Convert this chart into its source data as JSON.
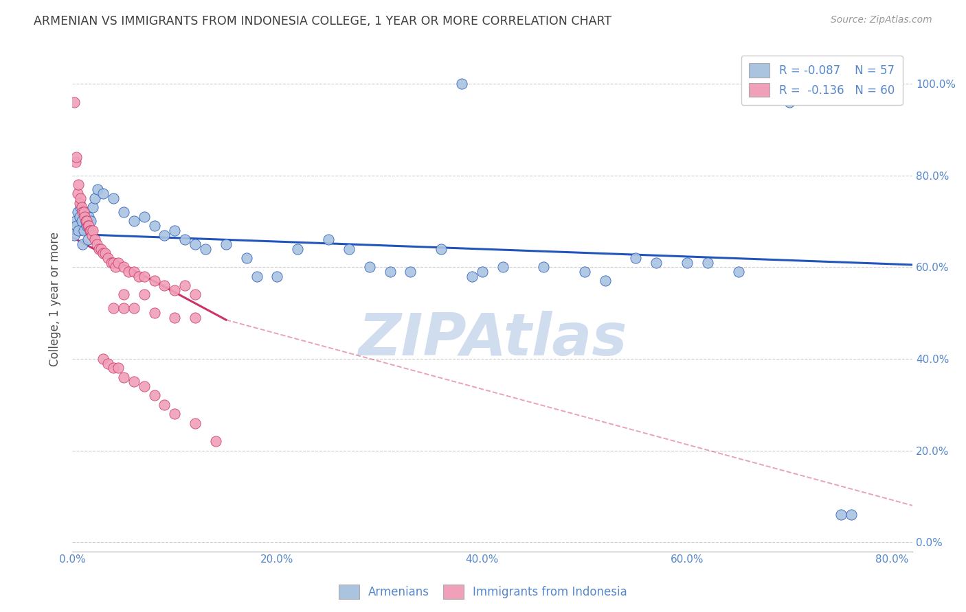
{
  "title": "ARMENIAN VS IMMIGRANTS FROM INDONESIA COLLEGE, 1 YEAR OR MORE CORRELATION CHART",
  "source": "Source: ZipAtlas.com",
  "ylabel": "College, 1 year or more",
  "xmin": 0.0,
  "xmax": 0.82,
  "ymin": -0.02,
  "ymax": 1.08,
  "legend_r1": "R = -0.087",
  "legend_n1": "N = 57",
  "legend_r2": "R =  -0.136",
  "legend_n2": "N = 60",
  "blue_color": "#aac4e0",
  "pink_color": "#f0a0b8",
  "blue_line_color": "#2255bb",
  "pink_line_color": "#cc3366",
  "grid_color": "#cccccc",
  "watermark_color": "#c8d8ec",
  "title_color": "#404040",
  "source_color": "#999999",
  "axis_color": "#5588cc",
  "blue_points": [
    [
      0.002,
      0.67
    ],
    [
      0.003,
      0.7
    ],
    [
      0.004,
      0.69
    ],
    [
      0.005,
      0.72
    ],
    [
      0.006,
      0.68
    ],
    [
      0.007,
      0.71
    ],
    [
      0.008,
      0.73
    ],
    [
      0.009,
      0.7
    ],
    [
      0.01,
      0.65
    ],
    [
      0.011,
      0.68
    ],
    [
      0.012,
      0.72
    ],
    [
      0.013,
      0.7
    ],
    [
      0.014,
      0.69
    ],
    [
      0.015,
      0.66
    ],
    [
      0.016,
      0.71
    ],
    [
      0.017,
      0.68
    ],
    [
      0.018,
      0.7
    ],
    [
      0.02,
      0.73
    ],
    [
      0.022,
      0.75
    ],
    [
      0.025,
      0.77
    ],
    [
      0.03,
      0.76
    ],
    [
      0.04,
      0.75
    ],
    [
      0.05,
      0.72
    ],
    [
      0.06,
      0.7
    ],
    [
      0.07,
      0.71
    ],
    [
      0.08,
      0.69
    ],
    [
      0.09,
      0.67
    ],
    [
      0.1,
      0.68
    ],
    [
      0.11,
      0.66
    ],
    [
      0.12,
      0.65
    ],
    [
      0.13,
      0.64
    ],
    [
      0.15,
      0.65
    ],
    [
      0.17,
      0.62
    ],
    [
      0.18,
      0.58
    ],
    [
      0.2,
      0.58
    ],
    [
      0.22,
      0.64
    ],
    [
      0.25,
      0.66
    ],
    [
      0.27,
      0.64
    ],
    [
      0.29,
      0.6
    ],
    [
      0.31,
      0.59
    ],
    [
      0.33,
      0.59
    ],
    [
      0.36,
      0.64
    ],
    [
      0.39,
      0.58
    ],
    [
      0.4,
      0.59
    ],
    [
      0.42,
      0.6
    ],
    [
      0.46,
      0.6
    ],
    [
      0.5,
      0.59
    ],
    [
      0.52,
      0.57
    ],
    [
      0.55,
      0.62
    ],
    [
      0.57,
      0.61
    ],
    [
      0.6,
      0.61
    ],
    [
      0.62,
      0.61
    ],
    [
      0.65,
      0.59
    ],
    [
      0.7,
      0.96
    ],
    [
      0.38,
      1.0
    ],
    [
      0.75,
      0.06
    ],
    [
      0.76,
      0.06
    ]
  ],
  "pink_points": [
    [
      0.002,
      0.96
    ],
    [
      0.003,
      0.83
    ],
    [
      0.004,
      0.84
    ],
    [
      0.005,
      0.76
    ],
    [
      0.006,
      0.78
    ],
    [
      0.007,
      0.74
    ],
    [
      0.008,
      0.75
    ],
    [
      0.009,
      0.73
    ],
    [
      0.01,
      0.72
    ],
    [
      0.011,
      0.72
    ],
    [
      0.012,
      0.71
    ],
    [
      0.013,
      0.7
    ],
    [
      0.014,
      0.7
    ],
    [
      0.015,
      0.69
    ],
    [
      0.016,
      0.69
    ],
    [
      0.017,
      0.68
    ],
    [
      0.018,
      0.68
    ],
    [
      0.019,
      0.67
    ],
    [
      0.02,
      0.68
    ],
    [
      0.022,
      0.66
    ],
    [
      0.024,
      0.65
    ],
    [
      0.026,
      0.64
    ],
    [
      0.028,
      0.64
    ],
    [
      0.03,
      0.63
    ],
    [
      0.032,
      0.63
    ],
    [
      0.035,
      0.62
    ],
    [
      0.038,
      0.61
    ],
    [
      0.04,
      0.61
    ],
    [
      0.042,
      0.6
    ],
    [
      0.045,
      0.61
    ],
    [
      0.05,
      0.6
    ],
    [
      0.055,
      0.59
    ],
    [
      0.06,
      0.59
    ],
    [
      0.065,
      0.58
    ],
    [
      0.07,
      0.58
    ],
    [
      0.08,
      0.57
    ],
    [
      0.09,
      0.56
    ],
    [
      0.1,
      0.55
    ],
    [
      0.11,
      0.56
    ],
    [
      0.12,
      0.54
    ],
    [
      0.04,
      0.51
    ],
    [
      0.05,
      0.51
    ],
    [
      0.06,
      0.51
    ],
    [
      0.08,
      0.5
    ],
    [
      0.1,
      0.49
    ],
    [
      0.12,
      0.49
    ],
    [
      0.05,
      0.54
    ],
    [
      0.07,
      0.54
    ],
    [
      0.03,
      0.4
    ],
    [
      0.035,
      0.39
    ],
    [
      0.04,
      0.38
    ],
    [
      0.045,
      0.38
    ],
    [
      0.05,
      0.36
    ],
    [
      0.06,
      0.35
    ],
    [
      0.07,
      0.34
    ],
    [
      0.08,
      0.32
    ],
    [
      0.09,
      0.3
    ],
    [
      0.1,
      0.28
    ],
    [
      0.12,
      0.26
    ],
    [
      0.14,
      0.22
    ]
  ],
  "blue_trend": [
    0.0,
    0.82,
    0.672,
    0.605
  ],
  "pink_trend_solid": [
    0.0,
    0.15,
    0.665,
    0.485
  ],
  "pink_trend_dash": [
    0.15,
    0.82,
    0.485,
    0.08
  ]
}
